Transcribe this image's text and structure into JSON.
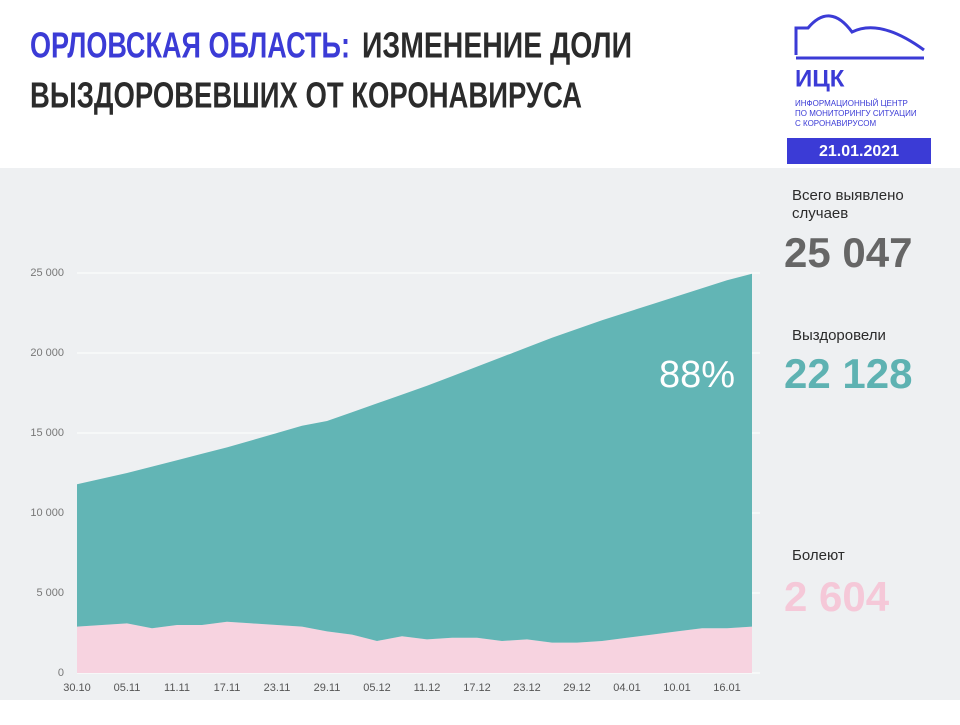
{
  "header": {
    "title_region": "ОРЛОВСКАЯ ОБЛАСТЬ:",
    "title_rest_1": "ИЗМЕНЕНИЕ ДОЛИ",
    "title_line_2": "ВЫЗДОРОВЕВШИХ ОТ КОРОНАВИРУСА",
    "logo": "ИЦК",
    "logo_sub": [
      "ИНФОРМАЦИОННЫЙ ЦЕНТР",
      "ПО МОНИТОРИНГУ СИТУАЦИИ",
      "С КОРОНАВИРУСОМ"
    ],
    "date": "21.01.2021"
  },
  "chart_data": {
    "type": "stacked_area",
    "categories": [
      "30.10",
      null,
      "05.11",
      null,
      "11.11",
      null,
      "17.11",
      null,
      "23.11",
      null,
      "29.11",
      null,
      "05.12",
      null,
      "11.12",
      null,
      "17.12",
      null,
      "23.12",
      null,
      "29.12",
      null,
      "04.01",
      null,
      "10.01",
      null,
      "16.01",
      null
    ],
    "series": [
      {
        "name": "Болеют",
        "color": "#f7d3e0",
        "total": 2604,
        "total_label": "2 604",
        "total_color": "#f5c8d8",
        "values": [
          2900,
          3000,
          3100,
          2800,
          3000,
          3000,
          3200,
          3100,
          3000,
          2900,
          2600,
          2400,
          2000,
          2300,
          2100,
          2200,
          2200,
          2000,
          2100,
          1900,
          1900,
          2000,
          2200,
          2400,
          2600,
          2800,
          2800,
          2900
        ]
      },
      {
        "name": "Выздоровели",
        "color": "#62b5b5",
        "total": 22128,
        "total_label": "22 128",
        "total_color": "#5eb2b2",
        "values": [
          8900,
          9150,
          9400,
          10100,
          10300,
          10700,
          10900,
          11450,
          12000,
          12550,
          13150,
          13900,
          14850,
          15100,
          15850,
          16350,
          16950,
          17750,
          18250,
          19050,
          19600,
          20050,
          20350,
          20650,
          20950,
          21250,
          21750,
          22050
        ]
      }
    ],
    "total_cases": {
      "label": "Всего выявлено случаев",
      "value": 25047,
      "value_label": "25 047"
    },
    "annotation": {
      "value": 88,
      "label": "88%"
    },
    "ylim": [
      0,
      25000
    ],
    "yticks": [
      0,
      {
        "value": 5000,
        "label": "5 000"
      },
      {
        "value": 10000,
        "label": "10 000"
      },
      {
        "value": 15000,
        "label": "15 000"
      },
      {
        "value": 20000,
        "label": "20 000"
      },
      {
        "value": 25000,
        "label": "25 000"
      }
    ],
    "grid": true
  }
}
